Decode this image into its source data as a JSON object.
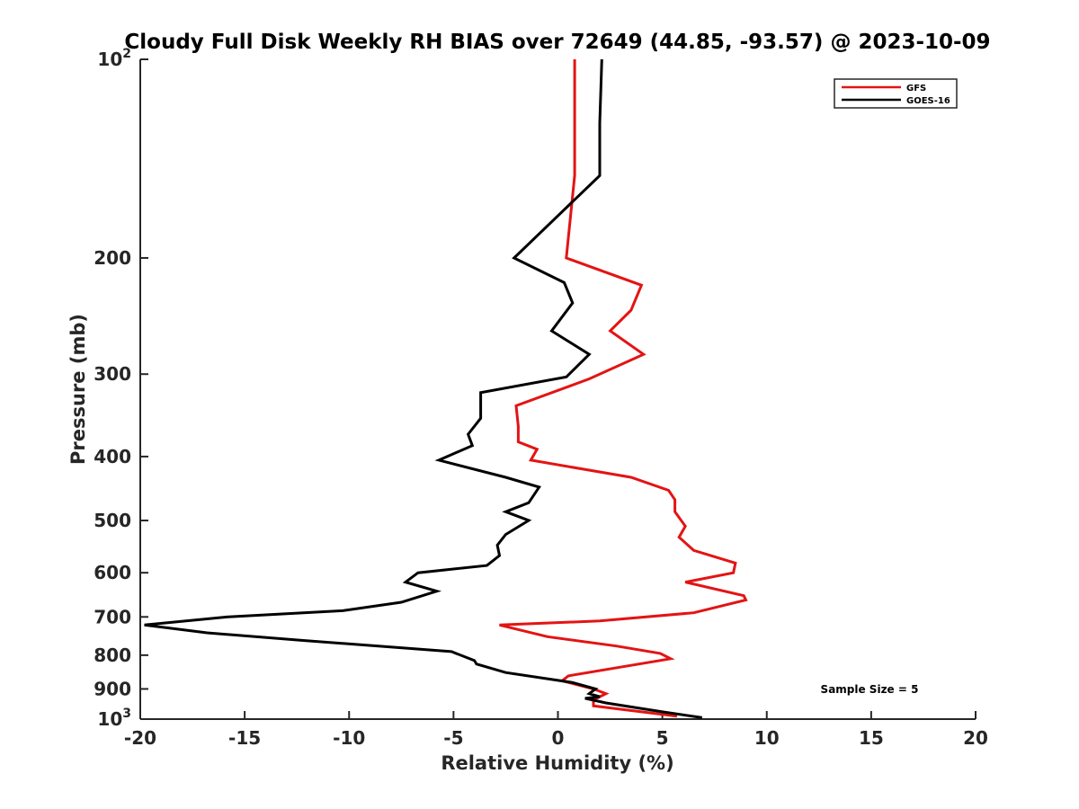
{
  "chart_data": {
    "type": "line",
    "title": "Cloudy Full Disk Weekly RH BIAS over 72649 (44.85, -93.57) @ 2023-10-09",
    "xlabel": "Relative Humidity (%)",
    "ylabel": "Pressure (mb)",
    "xlim": [
      -20,
      20
    ],
    "ylim": [
      100,
      1000
    ],
    "y_scale": "log",
    "y_reversed": true,
    "x_ticks": [
      -20,
      -15,
      -10,
      -5,
      0,
      5,
      10,
      15,
      20
    ],
    "x_tick_labels": [
      "-20",
      "-15",
      "-10",
      "-5",
      "0",
      "5",
      "10",
      "15",
      "20"
    ],
    "y_ticks": [
      100,
      200,
      300,
      400,
      500,
      600,
      700,
      800,
      900,
      1000
    ],
    "y_tick_labels": [
      {
        "base": "10",
        "exp": "2"
      },
      {
        "base": "200",
        "exp": ""
      },
      {
        "base": "300",
        "exp": ""
      },
      {
        "base": "400",
        "exp": ""
      },
      {
        "base": "500",
        "exp": ""
      },
      {
        "base": "600",
        "exp": ""
      },
      {
        "base": "700",
        "exp": ""
      },
      {
        "base": "800",
        "exp": ""
      },
      {
        "base": "900",
        "exp": ""
      },
      {
        "base": "10",
        "exp": "3"
      }
    ],
    "grid": false,
    "legend_position": "top-right",
    "annotation": "Sample Size = 5",
    "series": [
      {
        "name": "GFS",
        "color": "#e31414",
        "points": [
          [
            0.8,
            100
          ],
          [
            0.8,
            150
          ],
          [
            0.4,
            200
          ],
          [
            4.0,
            220
          ],
          [
            3.5,
            240
          ],
          [
            2.5,
            258
          ],
          [
            4.1,
            280
          ],
          [
            1.5,
            305
          ],
          [
            -2.0,
            335
          ],
          [
            -1.9,
            360
          ],
          [
            -1.9,
            380
          ],
          [
            -1.0,
            390
          ],
          [
            -1.3,
            405
          ],
          [
            3.5,
            430
          ],
          [
            5.3,
            450
          ],
          [
            5.6,
            465
          ],
          [
            5.6,
            485
          ],
          [
            6.1,
            510
          ],
          [
            5.8,
            530
          ],
          [
            6.5,
            555
          ],
          [
            8.5,
            580
          ],
          [
            8.4,
            600
          ],
          [
            6.1,
            620
          ],
          [
            8.9,
            650
          ],
          [
            9.0,
            660
          ],
          [
            6.5,
            690
          ],
          [
            2.0,
            710
          ],
          [
            -2.8,
            720
          ],
          [
            -0.5,
            750
          ],
          [
            2.8,
            775
          ],
          [
            4.9,
            795
          ],
          [
            5.4,
            810
          ],
          [
            0.5,
            860
          ],
          [
            0.2,
            875
          ],
          [
            1.7,
            900
          ],
          [
            2.3,
            915
          ],
          [
            1.7,
            935
          ],
          [
            1.7,
            955
          ],
          [
            5.7,
            990
          ]
        ]
      },
      {
        "name": "GOES-16",
        "color": "#000000",
        "points": [
          [
            2.1,
            100
          ],
          [
            2.0,
            125
          ],
          [
            2.0,
            150
          ],
          [
            -2.1,
            200
          ],
          [
            0.3,
            218
          ],
          [
            0.7,
            234
          ],
          [
            -0.3,
            258
          ],
          [
            1.5,
            280
          ],
          [
            0.4,
            303
          ],
          [
            -3.7,
            320
          ],
          [
            -3.7,
            350
          ],
          [
            -4.3,
            370
          ],
          [
            -4.1,
            385
          ],
          [
            -5.7,
            405
          ],
          [
            -2.5,
            430
          ],
          [
            -0.9,
            445
          ],
          [
            -1.4,
            470
          ],
          [
            -2.5,
            485
          ],
          [
            -1.4,
            500
          ],
          [
            -2.5,
            525
          ],
          [
            -2.9,
            545
          ],
          [
            -2.8,
            565
          ],
          [
            -3.4,
            585
          ],
          [
            -6.7,
            600
          ],
          [
            -7.3,
            620
          ],
          [
            -5.8,
            640
          ],
          [
            -7.5,
            665
          ],
          [
            -10.3,
            685
          ],
          [
            -15.8,
            700
          ],
          [
            -19.8,
            720
          ],
          [
            -16.8,
            740
          ],
          [
            -12.2,
            760
          ],
          [
            -5.1,
            790
          ],
          [
            -4.0,
            815
          ],
          [
            -3.9,
            825
          ],
          [
            -2.5,
            850
          ],
          [
            0.7,
            880
          ],
          [
            1.8,
            900
          ],
          [
            1.5,
            915
          ],
          [
            2.0,
            925
          ],
          [
            1.3,
            930
          ],
          [
            2.3,
            945
          ],
          [
            5.0,
            975
          ],
          [
            6.9,
            995
          ]
        ]
      }
    ]
  }
}
